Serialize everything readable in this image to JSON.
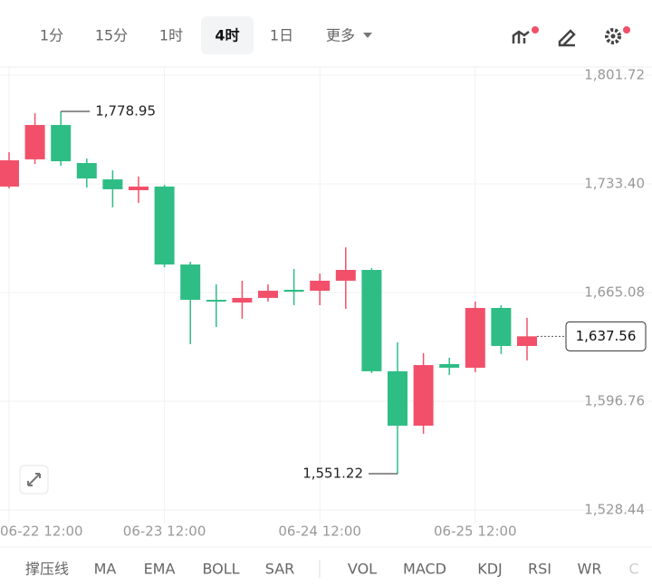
{
  "toolbar": {
    "intervals": [
      "1分",
      "15分",
      "1时",
      "4时",
      "1日"
    ],
    "selected": "4时",
    "more": "更多"
  },
  "chart_data": {
    "type": "candlestick",
    "categories": [
      "06-22 12:00",
      null,
      null,
      null,
      null,
      null,
      "06-23 12:00",
      null,
      null,
      null,
      null,
      null,
      "06-24 12:00",
      null,
      null,
      null,
      null,
      null,
      "06-25 12:00",
      null,
      null
    ],
    "open": [
      1731.7,
      1748.8,
      1770.4,
      1746.5,
      1736.2,
      1729.4,
      1731.7,
      1682.7,
      1660.5,
      1658.8,
      1661.7,
      1666.8,
      1666.2,
      1672.5,
      1679.3,
      1615.6,
      1581.4,
      1620.1,
      1617.8,
      1655.4,
      1631.5
    ],
    "high": [
      1753.3,
      1777.8,
      1778.95,
      1749.3,
      1741.9,
      1738.0,
      1732.8,
      1684.4,
      1670.2,
      1672.5,
      1670.2,
      1679.9,
      1677.0,
      1693.5,
      1680.4,
      1633.8,
      1627.0,
      1624.1,
      1659.4,
      1657.1,
      1649.2
    ],
    "low": [
      1730.6,
      1745.9,
      1744.8,
      1731.1,
      1718.6,
      1721.4,
      1681.0,
      1632.6,
      1643.4,
      1648.6,
      1659.4,
      1657.1,
      1657.1,
      1654.8,
      1614.4,
      1551.22,
      1576.3,
      1613.3,
      1615.0,
      1626.4,
      1622.4
    ],
    "close": [
      1748.2,
      1770.4,
      1747.6,
      1736.8,
      1730.0,
      1731.7,
      1682.7,
      1660.5,
      1659.4,
      1661.7,
      1666.2,
      1665.6,
      1672.5,
      1679.3,
      1615.6,
      1581.4,
      1619.5,
      1617.8,
      1655.4,
      1631.5,
      1637.56
    ],
    "up_color": "#f2506a",
    "down_color": "#2ebd85",
    "ylim": [
      1519.9,
      1807.4
    ],
    "yticks": [
      {
        "value": 1801.72,
        "label": "1,801.72"
      },
      {
        "value": 1733.4,
        "label": "1,733.40"
      },
      {
        "value": 1665.08,
        "label": "1,665.08"
      },
      {
        "value": 1596.76,
        "label": "1,596.76"
      },
      {
        "value": 1528.44,
        "label": "1,528.44"
      }
    ],
    "annotations": [
      {
        "value": 1778.95,
        "label": "1,778.95"
      },
      {
        "value": 1551.22,
        "label": "1,551.22"
      }
    ],
    "last_price": {
      "value": 1637.56,
      "label": "1,637.56"
    },
    "grid": true
  },
  "indicators": [
    "撑压线",
    "MA",
    "EMA",
    "BOLL",
    "SAR",
    "VOL",
    "MACD",
    "KDJ",
    "RSI",
    "WR",
    "C"
  ]
}
